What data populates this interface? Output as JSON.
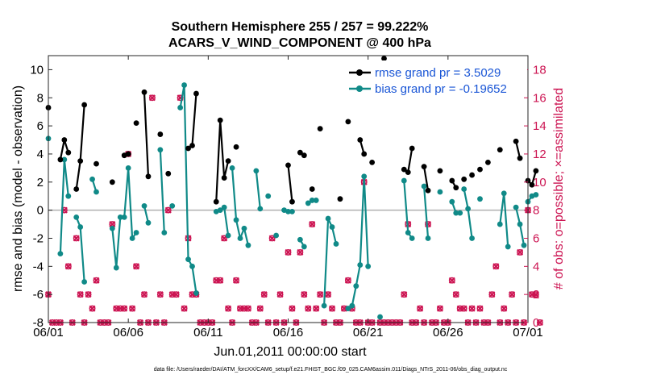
{
  "chart_data": {
    "type": "line",
    "title": [
      "Southern Hemisphere 255 / 257 = 99.222%",
      "ACARS_V_WIND_COMPONENT @ 400 hPa"
    ],
    "xlabel": "Jun.01,2011 00:00:00 start",
    "ylabel": "rmse and bias (model - observation)",
    "y2label": "# of obs: o=possible; ×=assimilated",
    "xlim": [
      0,
      30
    ],
    "ylim": [
      -8,
      11
    ],
    "y2lim": [
      0,
      19
    ],
    "xticks": [
      0,
      5,
      10,
      15,
      20,
      25,
      30
    ],
    "xticklabels": [
      "06/01",
      "06/06",
      "06/11",
      "06/16",
      "06/21",
      "06/26",
      "07/01"
    ],
    "yticks": [
      -8,
      -6,
      -4,
      -2,
      0,
      2,
      4,
      6,
      8,
      10
    ],
    "yticklabels": [
      "-8",
      "-6",
      "-4",
      "-2",
      "0",
      "2",
      "4",
      "6",
      "8",
      "10"
    ],
    "y2ticks": [
      0,
      2,
      4,
      6,
      8,
      10,
      12,
      14,
      16,
      18
    ],
    "y2ticklabels": [
      "0",
      "2",
      "4",
      "6",
      "8",
      "10",
      "12",
      "14",
      "16",
      "18"
    ],
    "zero_line": 0,
    "legend_position": "top-right",
    "series": [
      {
        "name": "rmse grand pr = 3.5029",
        "color": "#000000",
        "marker": "circle",
        "segments": [
          [
            [
              0.0,
              7.3
            ]
          ],
          [
            [
              0.75,
              3.6
            ],
            [
              1.0,
              5.0
            ],
            [
              1.25,
              4.1
            ]
          ],
          [
            [
              1.75,
              1.5
            ],
            [
              2.0,
              3.5
            ],
            [
              2.25,
              7.5
            ]
          ],
          [
            [
              3.0,
              3.3
            ]
          ],
          [
            [
              4.0,
              2.0
            ]
          ],
          [
            [
              4.75,
              3.9
            ],
            [
              5.0,
              4.0
            ]
          ],
          [
            [
              5.5,
              6.2
            ]
          ],
          [
            [
              6.0,
              8.4
            ],
            [
              6.25,
              2.4
            ]
          ],
          [
            [
              7.0,
              5.4
            ]
          ],
          [
            [
              7.5,
              2.6
            ]
          ],
          [
            [
              8.75,
              4.4
            ],
            [
              9.0,
              4.6
            ],
            [
              9.25,
              8.3
            ]
          ],
          [
            [
              10.5,
              0.6
            ],
            [
              10.75,
              6.4
            ],
            [
              11.0,
              2.3
            ],
            [
              11.25,
              3.5
            ]
          ],
          [
            [
              11.75,
              4.5
            ]
          ],
          [
            [
              15.0,
              3.2
            ],
            [
              15.25,
              0.6
            ]
          ],
          [
            [
              15.75,
              4.1
            ],
            [
              16.0,
              3.9
            ]
          ],
          [
            [
              16.5,
              1.5
            ]
          ],
          [
            [
              17.0,
              5.8
            ]
          ],
          [
            [
              18.25,
              0.8
            ]
          ],
          [
            [
              18.75,
              6.3
            ]
          ],
          [
            [
              19.5,
              5.0
            ],
            [
              19.75,
              4.0
            ]
          ],
          [
            [
              20.25,
              3.4
            ]
          ],
          [
            [
              21.0,
              10.8
            ]
          ],
          [
            [
              22.25,
              2.9
            ],
            [
              22.5,
              2.7
            ],
            [
              22.75,
              4.4
            ]
          ],
          [
            [
              23.5,
              3.1
            ],
            [
              23.75,
              1.4
            ]
          ],
          [
            [
              24.5,
              2.8
            ]
          ],
          [
            [
              25.25,
              2.1
            ],
            [
              25.5,
              1.6
            ]
          ],
          [
            [
              26.0,
              2.2
            ]
          ],
          [
            [
              26.5,
              2.5
            ]
          ],
          [
            [
              27.0,
              2.9
            ]
          ],
          [
            [
              27.5,
              3.4
            ]
          ],
          [
            [
              28.25,
              4.3
            ]
          ],
          [
            [
              29.25,
              4.9
            ],
            [
              29.5,
              3.7
            ]
          ],
          [
            [
              30.0,
              2.1
            ],
            [
              30.25,
              1.8
            ],
            [
              30.5,
              2.8
            ]
          ]
        ]
      },
      {
        "name": "bias grand pr = -0.19652",
        "color": "#108a88",
        "marker": "circle",
        "segments": [
          [
            [
              0.0,
              5.1
            ]
          ],
          [
            [
              0.75,
              -3.1
            ],
            [
              1.0,
              3.6
            ],
            [
              1.25,
              1.0
            ]
          ],
          [
            [
              1.75,
              -0.5
            ],
            [
              2.0,
              -1.2
            ],
            [
              2.25,
              -5.1
            ]
          ],
          [
            [
              2.75,
              2.2
            ],
            [
              3.0,
              1.3
            ]
          ],
          [
            [
              4.0,
              -1.3
            ],
            [
              4.25,
              -4.1
            ],
            [
              4.5,
              -0.5
            ],
            [
              4.75,
              -0.5
            ],
            [
              5.0,
              3.0
            ],
            [
              5.25,
              -2.0
            ],
            [
              5.5,
              -1.6
            ]
          ],
          [
            [
              6.0,
              0.3
            ],
            [
              6.25,
              -0.9
            ]
          ],
          [
            [
              7.0,
              4.3
            ],
            [
              7.25,
              -1.6
            ]
          ],
          [
            [
              7.75,
              0.3
            ]
          ],
          [
            [
              8.25,
              7.3
            ],
            [
              8.5,
              8.9
            ],
            [
              8.75,
              -3.5
            ],
            [
              9.0,
              -4.0
            ],
            [
              9.25,
              -5.9
            ]
          ],
          [
            [
              10.5,
              -0.1
            ],
            [
              10.75,
              0.0
            ],
            [
              11.0,
              0.2
            ],
            [
              11.25,
              -1.8
            ]
          ],
          [
            [
              11.5,
              3.0
            ],
            [
              11.75,
              -0.7
            ],
            [
              12.0,
              -2.0
            ],
            [
              12.25,
              -1.3
            ],
            [
              12.5,
              -2.5
            ]
          ],
          [
            [
              13.0,
              2.8
            ],
            [
              13.25,
              0.1
            ]
          ],
          [
            [
              13.75,
              1.0
            ]
          ],
          [
            [
              14.25,
              -1.8
            ]
          ],
          [
            [
              14.75,
              0.0
            ]
          ],
          [
            [
              15.0,
              -0.1
            ],
            [
              15.25,
              -0.1
            ]
          ],
          [
            [
              15.75,
              -2.1
            ],
            [
              16.0,
              -2.6
            ]
          ],
          [
            [
              16.25,
              0.5
            ],
            [
              16.5,
              0.7
            ],
            [
              16.75,
              0.7
            ]
          ],
          [
            [
              17.25,
              -6.8
            ],
            [
              17.5,
              -0.6
            ],
            [
              17.75,
              -1.2
            ],
            [
              18.0,
              -2.4
            ]
          ],
          [
            [
              18.75,
              -7.0
            ],
            [
              19.0,
              -6.8
            ],
            [
              19.25,
              -5.4
            ],
            [
              19.5,
              -3.9
            ],
            [
              19.75,
              2.4
            ],
            [
              20.0,
              -4.0
            ]
          ],
          [
            [
              20.75,
              -7.6
            ]
          ],
          [
            [
              22.25,
              2.1
            ],
            [
              22.5,
              -1.6
            ],
            [
              22.75,
              -2.0
            ]
          ],
          [
            [
              23.5,
              1.7
            ],
            [
              23.75,
              -2.0
            ]
          ],
          [
            [
              24.5,
              1.3
            ]
          ],
          [
            [
              25.25,
              0.6
            ],
            [
              25.5,
              -0.2
            ],
            [
              25.75,
              -0.2
            ]
          ],
          [
            [
              26.0,
              1.5
            ],
            [
              26.25,
              0.1
            ],
            [
              26.5,
              -2.0
            ]
          ],
          [
            [
              27.0,
              0.8
            ]
          ],
          [
            [
              28.25,
              -1.0
            ],
            [
              28.5,
              1.2
            ],
            [
              28.75,
              -2.6
            ]
          ],
          [
            [
              29.25,
              0.2
            ],
            [
              29.5,
              -1.0
            ],
            [
              29.75,
              -2.5
            ]
          ],
          [
            [
              30.0,
              0.6
            ],
            [
              30.25,
              1.0
            ],
            [
              30.5,
              1.1
            ]
          ]
        ]
      },
      {
        "name": "obs possible",
        "color": "#cc1452",
        "marker": "o",
        "axis": "right",
        "points": [
          [
            0.0,
            2.0
          ],
          [
            0.25,
            0.0
          ],
          [
            0.5,
            0.0
          ],
          [
            0.75,
            0.0
          ],
          [
            1.0,
            8.0
          ],
          [
            1.25,
            4.0
          ],
          [
            1.5,
            0.0
          ],
          [
            1.75,
            6.0
          ],
          [
            2.0,
            2.0
          ],
          [
            2.25,
            0.0
          ],
          [
            2.5,
            2.0
          ],
          [
            2.75,
            1.0
          ],
          [
            3.0,
            3.0
          ],
          [
            3.25,
            0.0
          ],
          [
            3.5,
            0.0
          ],
          [
            3.75,
            0.0
          ],
          [
            4.0,
            7.0
          ],
          [
            4.25,
            1.0
          ],
          [
            4.5,
            1.0
          ],
          [
            4.75,
            1.0
          ],
          [
            5.0,
            12.0
          ],
          [
            5.25,
            1.0
          ],
          [
            5.5,
            4.0
          ],
          [
            5.75,
            0.0
          ],
          [
            6.0,
            2.0
          ],
          [
            6.25,
            0.0
          ],
          [
            6.5,
            16.0
          ],
          [
            6.75,
            0.0
          ],
          [
            7.0,
            2.0
          ],
          [
            7.25,
            0.0
          ],
          [
            7.5,
            8.0
          ],
          [
            7.75,
            2.0
          ],
          [
            8.0,
            2.0
          ],
          [
            8.25,
            16.0
          ],
          [
            8.5,
            1.0
          ],
          [
            8.75,
            6.0
          ],
          [
            9.0,
            2.0
          ],
          [
            9.25,
            2.0
          ],
          [
            9.5,
            0.0
          ],
          [
            9.75,
            0.0
          ],
          [
            10.0,
            0.0
          ],
          [
            10.25,
            0.0
          ],
          [
            10.5,
            3.0
          ],
          [
            10.75,
            3.0
          ],
          [
            11.0,
            6.0
          ],
          [
            11.25,
            1.0
          ],
          [
            11.5,
            0.0
          ],
          [
            11.75,
            3.0
          ],
          [
            12.0,
            1.0
          ],
          [
            12.25,
            1.0
          ],
          [
            12.5,
            1.0
          ],
          [
            12.75,
            0.0
          ],
          [
            13.0,
            0.0
          ],
          [
            13.25,
            1.0
          ],
          [
            13.5,
            2.0
          ],
          [
            13.75,
            0.0
          ],
          [
            14.0,
            6.0
          ],
          [
            14.25,
            0.0
          ],
          [
            14.5,
            2.0
          ],
          [
            14.75,
            0.0
          ],
          [
            15.0,
            5.0
          ],
          [
            15.25,
            1.0
          ],
          [
            15.5,
            0.0
          ],
          [
            15.75,
            5.0
          ],
          [
            16.0,
            2.0
          ],
          [
            16.25,
            1.0
          ],
          [
            16.5,
            7.0
          ],
          [
            16.75,
            1.0
          ],
          [
            17.0,
            2.0
          ],
          [
            17.25,
            0.0
          ],
          [
            17.5,
            2.0
          ],
          [
            17.75,
            1.0
          ],
          [
            18.0,
            0.0
          ],
          [
            18.25,
            0.0
          ],
          [
            18.5,
            1.0
          ],
          [
            18.75,
            3.0
          ],
          [
            19.0,
            1.0
          ],
          [
            19.25,
            0.0
          ],
          [
            19.5,
            0.0
          ],
          [
            19.75,
            10.0
          ],
          [
            20.0,
            0.0
          ],
          [
            20.25,
            0.0
          ],
          [
            20.75,
            0.0
          ],
          [
            21.0,
            0.0
          ],
          [
            21.25,
            0.0
          ],
          [
            21.5,
            0.0
          ],
          [
            21.75,
            0.0
          ],
          [
            22.0,
            0.0
          ],
          [
            22.25,
            2.0
          ],
          [
            22.5,
            7.0
          ],
          [
            22.75,
            0.0
          ],
          [
            23.0,
            0.0
          ],
          [
            23.25,
            1.0
          ],
          [
            23.5,
            0.0
          ],
          [
            23.75,
            7.0
          ],
          [
            24.0,
            0.0
          ],
          [
            24.25,
            0.0
          ],
          [
            24.5,
            1.0
          ],
          [
            24.75,
            0.0
          ],
          [
            25.0,
            0.0
          ],
          [
            25.25,
            3.0
          ],
          [
            25.5,
            2.0
          ],
          [
            25.75,
            1.0
          ],
          [
            26.0,
            1.0
          ],
          [
            26.25,
            0.0
          ],
          [
            26.5,
            1.0
          ],
          [
            26.75,
            0.0
          ],
          [
            27.0,
            1.0
          ],
          [
            27.25,
            0.0
          ],
          [
            27.5,
            0.0
          ],
          [
            27.75,
            2.0
          ],
          [
            28.0,
            4.0
          ],
          [
            28.25,
            0.0
          ],
          [
            28.5,
            1.0
          ],
          [
            28.75,
            0.0
          ],
          [
            29.0,
            2.0
          ],
          [
            29.25,
            0.0
          ],
          [
            29.5,
            5.0
          ],
          [
            29.75,
            0.0
          ],
          [
            30.0,
            8.0
          ],
          [
            30.25,
            2.0
          ],
          [
            30.5,
            2.0
          ],
          [
            30.75,
            0.0
          ]
        ]
      },
      {
        "name": "obs assimilated",
        "color": "#cc1452",
        "marker": "x",
        "axis": "right",
        "same_as": "obs possible"
      }
    ],
    "footnote": "data file: /Users/raeder/DAI/ATM_forcXX/CAM6_setup/f.e21.FHIST_BGC.f09_025.CAM6assim.011/Diags_NTrS_2011-06/obs_diag_output.nc"
  }
}
